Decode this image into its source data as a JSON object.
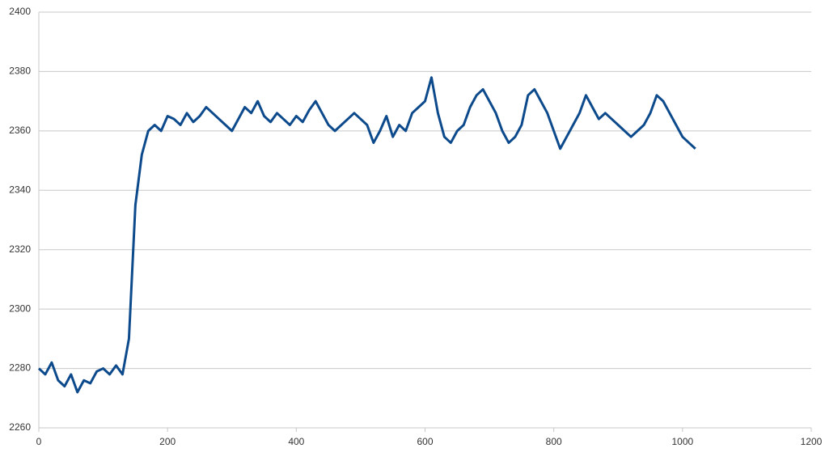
{
  "chart_data": {
    "type": "line",
    "x": [
      0,
      10,
      20,
      30,
      40,
      50,
      60,
      70,
      80,
      90,
      100,
      110,
      120,
      130,
      140,
      150,
      160,
      170,
      180,
      190,
      200,
      210,
      220,
      230,
      240,
      250,
      260,
      270,
      280,
      290,
      300,
      310,
      320,
      330,
      340,
      350,
      360,
      370,
      380,
      390,
      400,
      410,
      420,
      430,
      440,
      450,
      460,
      470,
      480,
      490,
      500,
      510,
      520,
      530,
      540,
      550,
      560,
      570,
      580,
      590,
      600,
      610,
      620,
      630,
      640,
      650,
      660,
      670,
      680,
      690,
      700,
      710,
      720,
      730,
      740,
      750,
      760,
      770,
      780,
      790,
      800,
      810,
      820,
      830,
      840,
      850,
      860,
      870,
      880,
      890,
      900,
      910,
      920,
      930,
      940,
      950,
      960,
      970,
      980,
      990,
      1000,
      1010,
      1020
    ],
    "series": [
      {
        "color": "#0d4a8c",
        "values": [
          2280,
          2278,
          2282,
          2276,
          2274,
          2278,
          2272,
          2276,
          2275,
          2279,
          2280,
          2278,
          2281,
          2278,
          2290,
          2335,
          2352,
          2360,
          2362,
          2360,
          2365,
          2364,
          2362,
          2366,
          2363,
          2365,
          2368,
          2366,
          2364,
          2362,
          2360,
          2364,
          2368,
          2366,
          2370,
          2365,
          2363,
          2366,
          2364,
          2362,
          2365,
          2363,
          2367,
          2370,
          2366,
          2362,
          2360,
          2362,
          2364,
          2366,
          2364,
          2362,
          2356,
          2360,
          2365,
          2358,
          2362,
          2360,
          2366,
          2368,
          2370,
          2378,
          2366,
          2358,
          2356,
          2360,
          2362,
          2368,
          2372,
          2374,
          2370,
          2366,
          2360,
          2356,
          2358,
          2362,
          2372,
          2374,
          2370,
          2366,
          2360,
          2354,
          2358,
          2362,
          2366,
          2372,
          2368,
          2364,
          2366,
          2364,
          2362,
          2360,
          2358,
          2360,
          2362,
          2366,
          2372,
          2370,
          2366,
          2362,
          2358,
          2356,
          2354
        ]
      }
    ],
    "xlim": [
      0,
      1200
    ],
    "xticks": [
      0,
      200,
      400,
      600,
      800,
      1000,
      1200
    ],
    "ylim": [
      2260,
      2400
    ],
    "yticks": [
      2260,
      2280,
      2300,
      2320,
      2340,
      2360,
      2380,
      2400
    ],
    "grid": true
  }
}
